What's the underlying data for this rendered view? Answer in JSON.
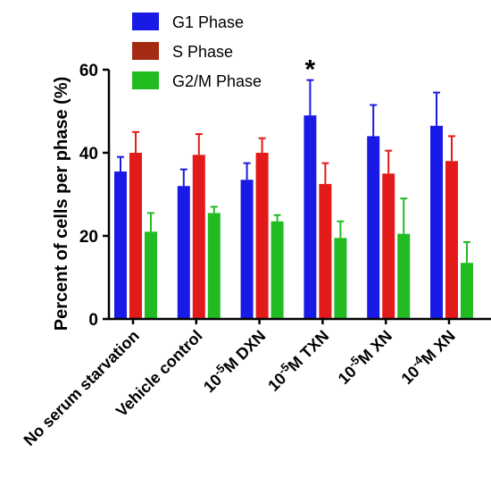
{
  "chart_data": {
    "type": "bar",
    "title": "",
    "xlabel": "",
    "ylabel": "Percent of cells per phase (%)",
    "ylim": [
      0,
      60
    ],
    "yticks": [
      0,
      20,
      40,
      60
    ],
    "grid": false,
    "legend_position": "top",
    "categories": [
      {
        "label": "No serum starvation"
      },
      {
        "label": "Vehicle control"
      },
      {
        "prefix": "10",
        "exp": "-5",
        "suffix": "M DXN"
      },
      {
        "prefix": "10",
        "exp": "-5",
        "suffix": "M TXN"
      },
      {
        "prefix": "10",
        "exp": "-5",
        "suffix": "M XN"
      },
      {
        "prefix": "10",
        "exp": "-4",
        "suffix": "M XN"
      }
    ],
    "series": [
      {
        "name": "G1 Phase",
        "color": "#1a1ae6",
        "values": [
          35.5,
          32.0,
          33.5,
          49.0,
          44.0,
          46.5
        ],
        "errors": [
          3.5,
          4.0,
          4.0,
          8.5,
          7.5,
          8.0
        ]
      },
      {
        "name": "S Phase",
        "color": "#e31a1a",
        "legend_color": "#a52a12",
        "values": [
          40.0,
          39.5,
          40.0,
          32.5,
          35.0,
          38.0
        ],
        "errors": [
          5.0,
          5.0,
          3.5,
          5.0,
          5.5,
          6.0
        ]
      },
      {
        "name": "G2/M Phase",
        "color": "#22bb22",
        "values": [
          21.0,
          25.5,
          23.5,
          19.5,
          20.5,
          13.5
        ],
        "errors": [
          4.5,
          1.5,
          1.5,
          4.0,
          8.5,
          5.0
        ]
      }
    ],
    "annotations": [
      {
        "text": "*",
        "category_index": 3,
        "series_index": 0
      }
    ]
  }
}
